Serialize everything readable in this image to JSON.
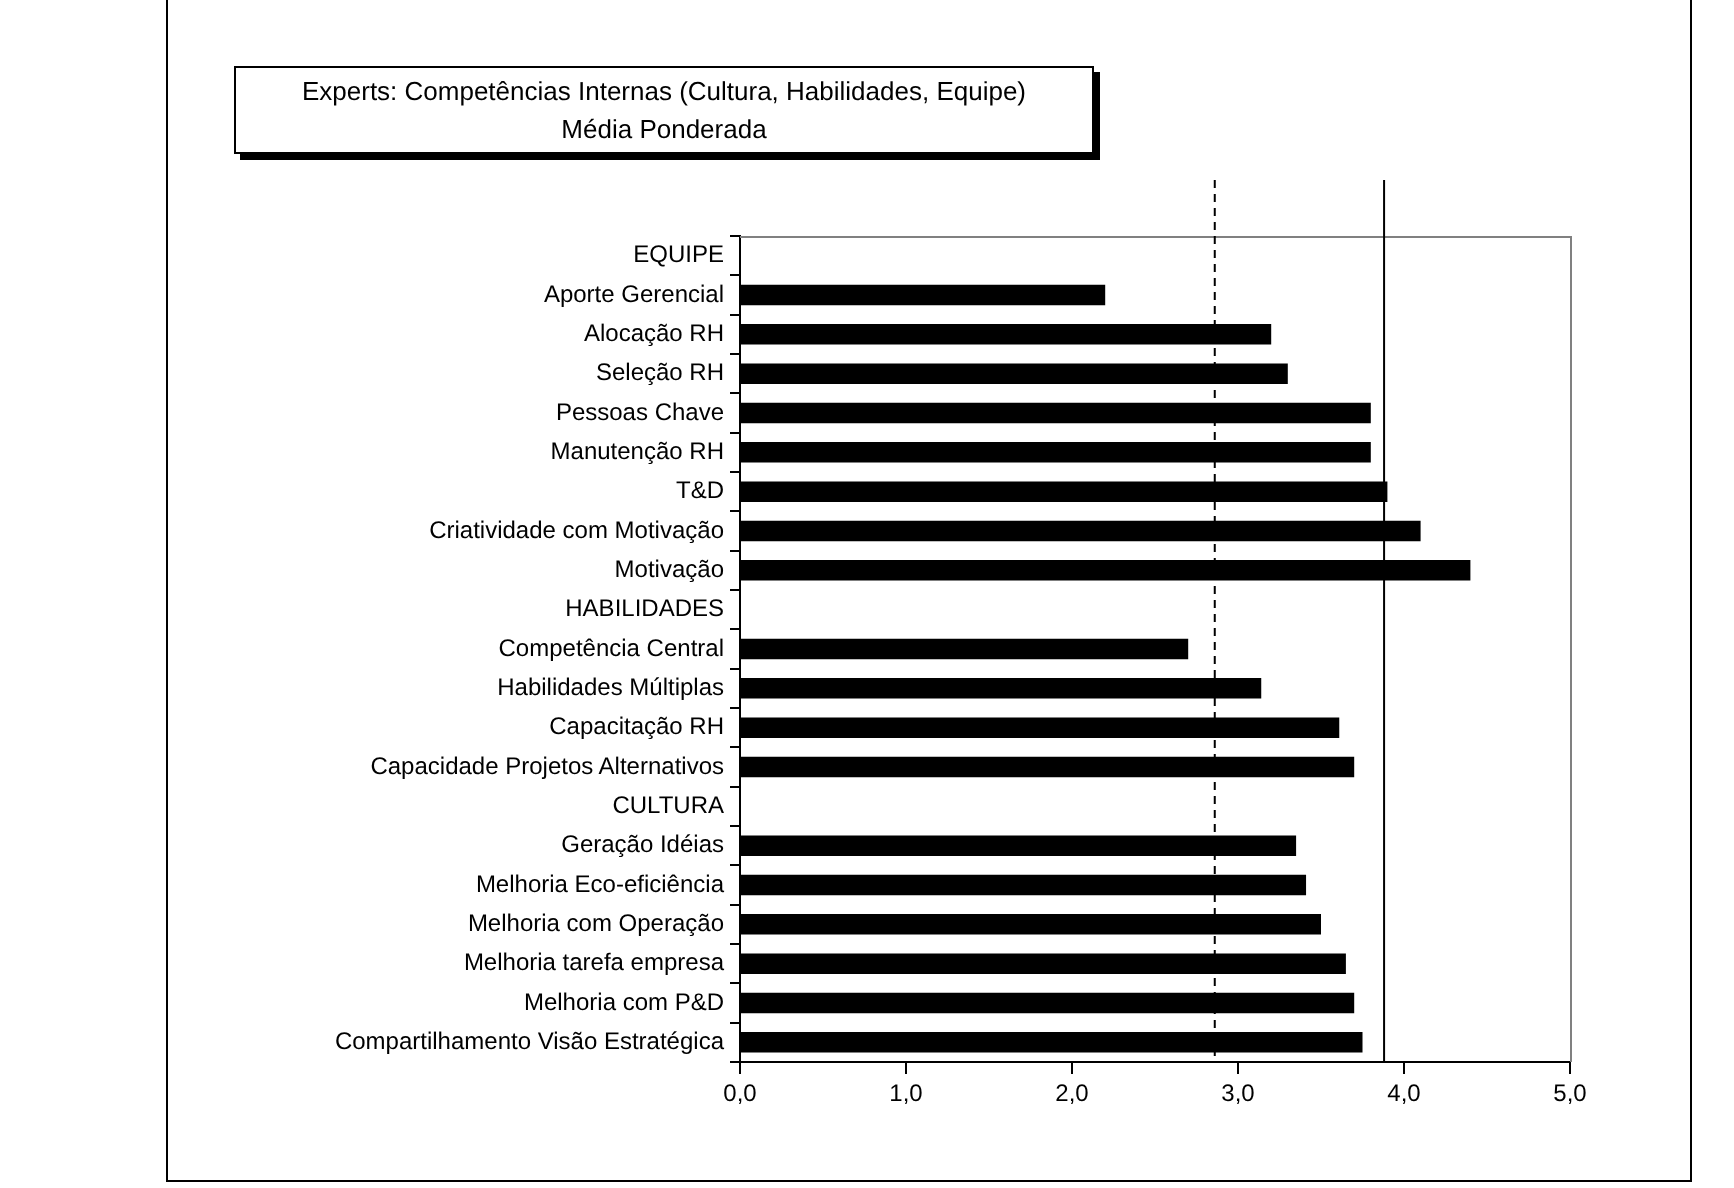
{
  "chart_data": {
    "type": "bar",
    "orientation": "horizontal",
    "title": "Experts: Competências Internas (Cultura, Habilidades, Equipe)",
    "subtitle": "Média Ponderada",
    "categories": [
      "EQUIPE",
      "Aporte Gerencial",
      "Alocação RH",
      "Seleção RH",
      "Pessoas Chave",
      "Manutenção RH",
      "T&D",
      "Criatividade com Motivação",
      "Motivação",
      "HABILIDADES",
      "Competência Central",
      "Habilidades Múltiplas",
      "Capacitação RH",
      "Capacidade Projetos Alternativos",
      "CULTURA",
      "Geração Idéias",
      "Melhoria Eco-eficiência",
      "Melhoria com Operação",
      "Melhoria tarefa empresa",
      "Melhoria com P&D",
      "Compartilhamento Visão Estratégica"
    ],
    "values": [
      null,
      2.2,
      3.2,
      3.3,
      3.8,
      3.8,
      3.9,
      4.1,
      4.4,
      null,
      2.7,
      3.14,
      3.61,
      3.7,
      null,
      3.35,
      3.41,
      3.5,
      3.65,
      3.7,
      3.75
    ],
    "color": "#000000",
    "xlim": [
      0,
      5
    ],
    "xticks": [
      {
        "value": 0,
        "label": "0,0"
      },
      {
        "value": 1,
        "label": "1,0"
      },
      {
        "value": 2,
        "label": "2,0"
      },
      {
        "value": 3,
        "label": "3,0"
      },
      {
        "value": 4,
        "label": "4,0"
      },
      {
        "value": 5,
        "label": "5,0"
      }
    ],
    "ref_lines": [
      {
        "axis": "x",
        "value": 2.86,
        "line_style": "dashed",
        "color": "#000000"
      },
      {
        "axis": "x",
        "value": 3.88,
        "line_style": "solid",
        "color": "#000000"
      }
    ],
    "grid": false,
    "legend": false
  }
}
